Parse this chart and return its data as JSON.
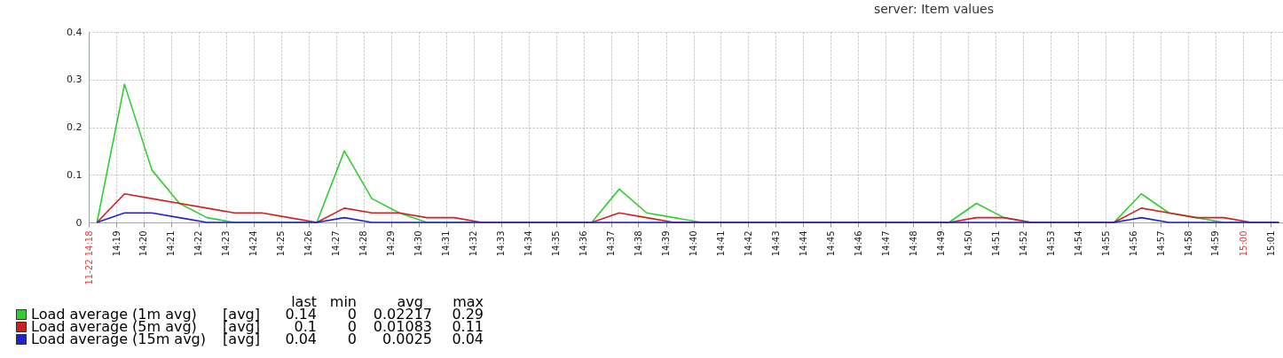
{
  "chart_data": {
    "type": "line",
    "title": "server: Item values",
    "x": [
      14.305,
      14.3217,
      14.3383,
      14.355,
      14.3717,
      14.3883,
      14.405,
      14.4217,
      14.4383,
      14.455,
      14.4717,
      14.4883,
      14.505,
      14.5217,
      14.5383,
      14.555,
      14.5717,
      14.5883,
      14.605,
      14.6217,
      14.6383,
      14.655,
      14.6717,
      14.6883,
      14.705,
      14.7217,
      14.7383,
      14.755,
      14.7717,
      14.7883,
      14.805,
      14.8217,
      14.8383,
      14.855,
      14.8717,
      14.8883,
      14.905,
      14.9217,
      14.9383,
      14.955,
      14.9717,
      14.9883,
      15.005,
      15.0217
    ],
    "xlim": [
      14.3,
      15.0242
    ],
    "xticks": [
      {
        "value": 14.3,
        "label": "11-22 14:18"
      },
      {
        "value": 14.3167,
        "label": "14:19"
      },
      {
        "value": 14.3333,
        "label": "14:20"
      },
      {
        "value": 14.35,
        "label": "14:21"
      },
      {
        "value": 14.3667,
        "label": "14:22"
      },
      {
        "value": 14.3833,
        "label": "14:23"
      },
      {
        "value": 14.4,
        "label": "14:24"
      },
      {
        "value": 14.4167,
        "label": "14:25"
      },
      {
        "value": 14.4333,
        "label": "14:26"
      },
      {
        "value": 14.45,
        "label": "14:27"
      },
      {
        "value": 14.4667,
        "label": "14:28"
      },
      {
        "value": 14.4833,
        "label": "14:29"
      },
      {
        "value": 14.5,
        "label": "14:30"
      },
      {
        "value": 14.5167,
        "label": "14:31"
      },
      {
        "value": 14.5333,
        "label": "14:32"
      },
      {
        "value": 14.55,
        "label": "14:33"
      },
      {
        "value": 14.5667,
        "label": "14:34"
      },
      {
        "value": 14.5833,
        "label": "14:35"
      },
      {
        "value": 14.6,
        "label": "14:36"
      },
      {
        "value": 14.6167,
        "label": "14:37"
      },
      {
        "value": 14.6333,
        "label": "14:38"
      },
      {
        "value": 14.65,
        "label": "14:39"
      },
      {
        "value": 14.6667,
        "label": "14:40"
      },
      {
        "value": 14.6833,
        "label": "14:41"
      },
      {
        "value": 14.7,
        "label": "14:42"
      },
      {
        "value": 14.7167,
        "label": "14:43"
      },
      {
        "value": 14.7333,
        "label": "14:44"
      },
      {
        "value": 14.75,
        "label": "14:45"
      },
      {
        "value": 14.7667,
        "label": "14:46"
      },
      {
        "value": 14.7833,
        "label": "14:47"
      },
      {
        "value": 14.8,
        "label": "14:48"
      },
      {
        "value": 14.8167,
        "label": "14:49"
      },
      {
        "value": 14.8333,
        "label": "14:50"
      },
      {
        "value": 14.85,
        "label": "14:51"
      },
      {
        "value": 14.8667,
        "label": "14:52"
      },
      {
        "value": 14.8833,
        "label": "14:53"
      },
      {
        "value": 14.9,
        "label": "14:54"
      },
      {
        "value": 14.9167,
        "label": "14:55"
      },
      {
        "value": 14.9333,
        "label": "14:56"
      },
      {
        "value": 14.95,
        "label": "14:57"
      },
      {
        "value": 14.9667,
        "label": "14:58"
      },
      {
        "value": 14.9833,
        "label": "14:59"
      },
      {
        "value": 15.0,
        "label": "15:00"
      },
      {
        "value": 15.0167,
        "label": "15:01"
      }
    ],
    "ylim": [
      0,
      0.4
    ],
    "yticks": [
      0,
      0.1,
      0.2,
      0.3,
      0.4
    ],
    "series": [
      {
        "name": "Load average (1m avg)",
        "color": "#33cc33",
        "values": [
          0,
          0.29,
          0.11,
          0.04,
          0.01,
          0,
          0,
          0,
          0,
          0.15,
          0.05,
          0.02,
          0,
          0,
          0,
          0,
          0,
          0,
          0,
          0.07,
          0.02,
          0.01,
          0,
          0,
          0,
          0,
          0,
          0,
          0,
          0,
          0,
          0,
          0.04,
          0.01,
          0,
          0,
          0,
          0,
          0.06,
          0.02,
          0.01,
          0,
          0,
          0
        ]
      },
      {
        "name": "Load average (5m avg)",
        "color": "#cc2222",
        "values": [
          0,
          0.06,
          0.05,
          0.04,
          0.03,
          0.02,
          0.02,
          0.01,
          0,
          0.03,
          0.02,
          0.02,
          0.01,
          0.01,
          0,
          0,
          0,
          0,
          0,
          0.02,
          0.01,
          0,
          0,
          0,
          0,
          0,
          0,
          0,
          0,
          0,
          0,
          0,
          0.01,
          0.01,
          0,
          0,
          0,
          0,
          0.03,
          0.02,
          0.01,
          0.01,
          0,
          0
        ]
      },
      {
        "name": "Load average (15m avg)",
        "color": "#2222cc",
        "values": [
          0,
          0.02,
          0.02,
          0.01,
          0,
          0,
          0,
          0,
          0,
          0.01,
          0,
          0,
          0,
          0,
          0,
          0,
          0,
          0,
          0,
          0,
          0,
          0,
          0,
          0,
          0,
          0,
          0,
          0,
          0,
          0,
          0,
          0,
          0,
          0,
          0,
          0,
          0,
          0,
          0.01,
          0,
          0,
          0,
          0,
          0
        ]
      }
    ],
    "grid": true,
    "legend": "bottom",
    "annotations": [
      "last",
      "min",
      "avg",
      "max",
      "[avg]",
      "0.14",
      "0",
      "0.02217",
      "0.29",
      "[avg]",
      "0.1",
      "0",
      "0.01083",
      "0.11",
      "[avg]",
      "0.04",
      "0",
      "0.0025",
      "0.04"
    ]
  }
}
